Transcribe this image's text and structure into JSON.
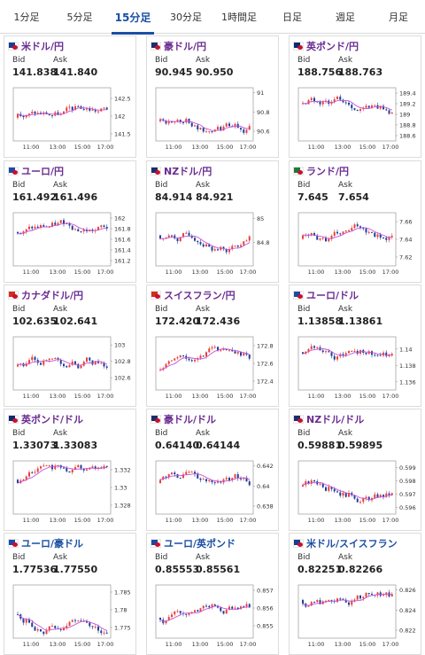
{
  "tabs": [
    {
      "label": "1分足",
      "active": false
    },
    {
      "label": "5分足",
      "active": false
    },
    {
      "label": "15分足",
      "active": true
    },
    {
      "label": "30分足",
      "active": false
    },
    {
      "label": "1時間足",
      "active": false
    },
    {
      "label": "日足",
      "active": false
    },
    {
      "label": "週足",
      "active": false
    },
    {
      "label": "月足",
      "active": false
    }
  ],
  "bid_label": "Bid",
  "ask_label": "Ask",
  "x_ticks": [
    "11:00",
    "13:00",
    "15:00",
    "17:00"
  ],
  "cards": [
    {
      "pair": "米ドル/円",
      "color": "purple",
      "flag": [
        "#1a3d8f",
        "#c8102e"
      ],
      "bid": "141.838",
      "ask": "141.840",
      "yticks": [
        "142.5",
        "142",
        "141.5"
      ],
      "ylim": [
        141.3,
        142.8
      ]
    },
    {
      "pair": "豪ドル/円",
      "color": "purple",
      "flag": [
        "#1a2f6b",
        "#c8102e"
      ],
      "bid": "90.945",
      "ask": "90.950",
      "yticks": [
        "91",
        "90.8",
        "90.6"
      ],
      "ylim": [
        90.5,
        91.05
      ]
    },
    {
      "pair": "英ポンド/円",
      "color": "purple",
      "flag": [
        "#0b2a6f",
        "#c8102e"
      ],
      "bid": "188.756",
      "ask": "188.763",
      "yticks": [
        "189.4",
        "189.2",
        "189",
        "188.8",
        "188.6"
      ],
      "ylim": [
        188.5,
        189.5
      ]
    },
    {
      "pair": "ユーロ/円",
      "color": "purple",
      "flag": [
        "#1d4aa6",
        "#c8102e"
      ],
      "bid": "161.492",
      "ask": "161.496",
      "yticks": [
        "162",
        "161.8",
        "161.6",
        "161.4",
        "161.2"
      ],
      "ylim": [
        161.1,
        162.1
      ]
    },
    {
      "pair": "NZドル/円",
      "color": "purple",
      "flag": [
        "#1a2f6b",
        "#c8102e"
      ],
      "bid": "84.914",
      "ask": "84.921",
      "yticks": [
        "85",
        "84.8"
      ],
      "ylim": [
        84.6,
        85.05
      ]
    },
    {
      "pair": "ランド/円",
      "color": "purple",
      "flag": [
        "#1f7a3a",
        "#c8102e"
      ],
      "bid": "7.645",
      "ask": "7.654",
      "yticks": [
        "7.66",
        "7.64",
        "7.62"
      ],
      "ylim": [
        7.61,
        7.67
      ]
    },
    {
      "pair": "カナダドル/円",
      "color": "purple",
      "flag": [
        "#d52b1e",
        "#c8102e"
      ],
      "bid": "102.635",
      "ask": "102.641",
      "yticks": [
        "103",
        "102.8",
        "102.6"
      ],
      "ylim": [
        102.45,
        103.1
      ]
    },
    {
      "pair": "スイスフラン/円",
      "color": "purple",
      "flag": [
        "#d52b1e",
        "#c8102e"
      ],
      "bid": "172.420",
      "ask": "172.436",
      "yticks": [
        "172.8",
        "172.6",
        "172.4"
      ],
      "ylim": [
        172.3,
        172.9
      ]
    },
    {
      "pair": "ユーロ/ドル",
      "color": "purple",
      "flag": [
        "#1d4aa6",
        "#c8102e"
      ],
      "bid": "1.13858",
      "ask": "1.13861",
      "yticks": [
        "1.14",
        "1.138",
        "1.136"
      ],
      "ylim": [
        1.135,
        1.1415
      ]
    },
    {
      "pair": "英ポンド/ドル",
      "color": "purple",
      "flag": [
        "#0b2a6f",
        "#c8102e"
      ],
      "bid": "1.33073",
      "ask": "1.33083",
      "yticks": [
        "1.332",
        "1.33",
        "1.328"
      ],
      "ylim": [
        1.327,
        1.333
      ]
    },
    {
      "pair": "豪ドル/ドル",
      "color": "purple",
      "flag": [
        "#1a2f6b",
        "#c8102e"
      ],
      "bid": "0.64140",
      "ask": "0.64144",
      "yticks": [
        "0.642",
        "0.64",
        "0.638"
      ],
      "ylim": [
        0.6372,
        0.6425
      ]
    },
    {
      "pair": "NZドル/ドル",
      "color": "purple",
      "flag": [
        "#1a2f6b",
        "#c8102e"
      ],
      "bid": "0.59881",
      "ask": "0.59895",
      "yticks": [
        "0.599",
        "0.598",
        "0.597",
        "0.596"
      ],
      "ylim": [
        0.5955,
        0.5995
      ]
    },
    {
      "pair": "ユーロ/豪ドル",
      "color": "blue",
      "flag": [
        "#1d4aa6",
        "#c8102e"
      ],
      "bid": "1.77536",
      "ask": "1.77550",
      "yticks": [
        "1.785",
        "1.78",
        "1.775"
      ],
      "ylim": [
        1.772,
        1.787
      ]
    },
    {
      "pair": "ユーロ/英ポンド",
      "color": "blue",
      "flag": [
        "#1d4aa6",
        "#c8102e"
      ],
      "bid": "0.85553",
      "ask": "0.85561",
      "yticks": [
        "0.857",
        "0.856",
        "0.855"
      ],
      "ylim": [
        0.8543,
        0.8573
      ]
    },
    {
      "pair": "米ドル/スイスフラン",
      "color": "blue",
      "flag": [
        "#1a3d8f",
        "#c8102e"
      ],
      "bid": "0.82251",
      "ask": "0.82266",
      "yticks": [
        "0.826",
        "0.824",
        "0.822"
      ],
      "ylim": [
        0.8212,
        0.8265
      ]
    }
  ],
  "colors": {
    "up": "#e8413a",
    "down": "#1f3f99",
    "ma": "#c653d8",
    "active_tab": "#1a4fa3"
  }
}
